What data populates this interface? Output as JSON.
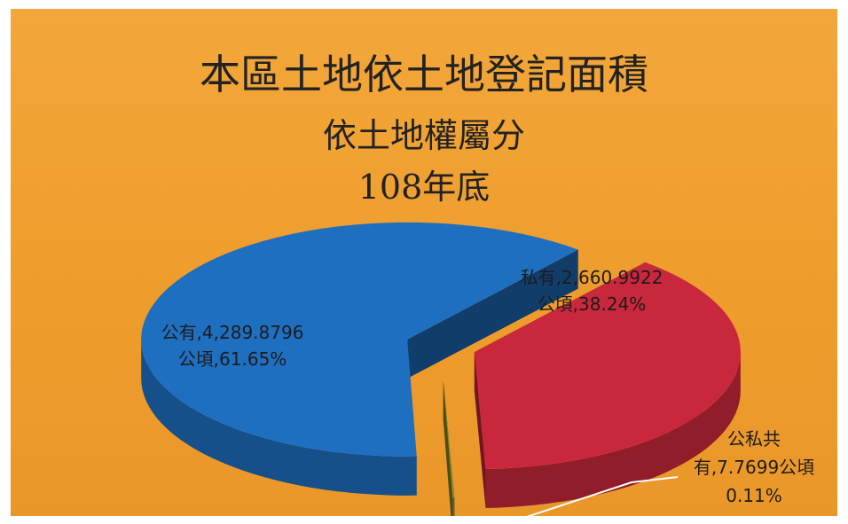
{
  "chart_data": {
    "type": "pie",
    "title": "本區土地依土地登記面積",
    "subtitle_lines": [
      "依土地權屬分",
      "108年底"
    ],
    "slices": [
      {
        "category": "公有",
        "value": 4289.8796,
        "percent": 61.65,
        "label_lines": [
          "公有,4,289.8796",
          "公頃,61.65%"
        ],
        "color": "#1f6fc1"
      },
      {
        "category": "私有",
        "value": 2660.9922,
        "percent": 38.24,
        "label_lines": [
          "私有,2,660.9922",
          "公頃,38.24%"
        ],
        "color": "#c9283c"
      },
      {
        "category": "公私共有",
        "value": 7.7699,
        "percent": 0.11,
        "label_lines": [
          "公私共",
          "有,7.7699公頃",
          "0.11%"
        ],
        "color": "#8a8a2a"
      }
    ],
    "background_color": "#f0a030",
    "legend": "none"
  }
}
